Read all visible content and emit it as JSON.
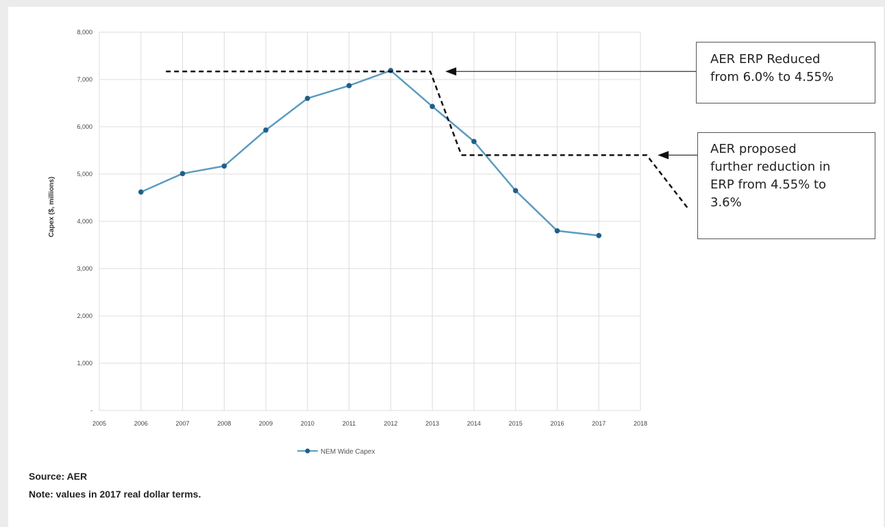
{
  "chart_data": {
    "type": "line",
    "title": "",
    "xlabel": "",
    "ylabel": "Capex ($, millions)",
    "xlim": [
      2005,
      2018
    ],
    "ylim": [
      0,
      8000
    ],
    "x_ticks": [
      "2005",
      "2006",
      "2007",
      "2008",
      "2009",
      "2010",
      "2011",
      "2012",
      "2013",
      "2014",
      "2015",
      "2016",
      "2017",
      "2018"
    ],
    "y_ticks": [
      "-",
      "1,000",
      "2,000",
      "3,000",
      "4,000",
      "5,000",
      "6,000",
      "7,000",
      "8,000"
    ],
    "grid": true,
    "legend_position": "bottom",
    "series": [
      {
        "name": "NEM Wide Capex",
        "color": "#5b9bc0",
        "x": [
          2006,
          2007,
          2008,
          2009,
          2010,
          2011,
          2012,
          2013,
          2014,
          2015,
          2016,
          2017
        ],
        "values": [
          4620,
          5010,
          5170,
          5930,
          6600,
          6870,
          7190,
          6430,
          5690,
          4650,
          3800,
          3700
        ]
      }
    ],
    "annotations": [
      {
        "line1": "AER ERP Reduced",
        "line2": "from 6.0% to 4.55%"
      },
      {
        "line1": "AER proposed",
        "line2": "further reduction in",
        "line3": "ERP from 4.55% to",
        "line4": "3.6%"
      }
    ],
    "reference_lines": [
      {
        "style": "dashed",
        "level": 7170,
        "from_x": 2006.6,
        "to_x": 2012.95,
        "drop_to_x": 2013.7,
        "drop_to_level": 5400
      },
      {
        "style": "dashed",
        "level": 5400,
        "from_x": 2013.7,
        "to_x": 2018.15
      }
    ]
  },
  "notes": {
    "source": "Source: AER",
    "values": "Note: values in 2017 real dollar terms."
  },
  "colors": {
    "line": "#5b9bc0",
    "marker": "#1f5f86",
    "grid": "#dcdcdc"
  }
}
